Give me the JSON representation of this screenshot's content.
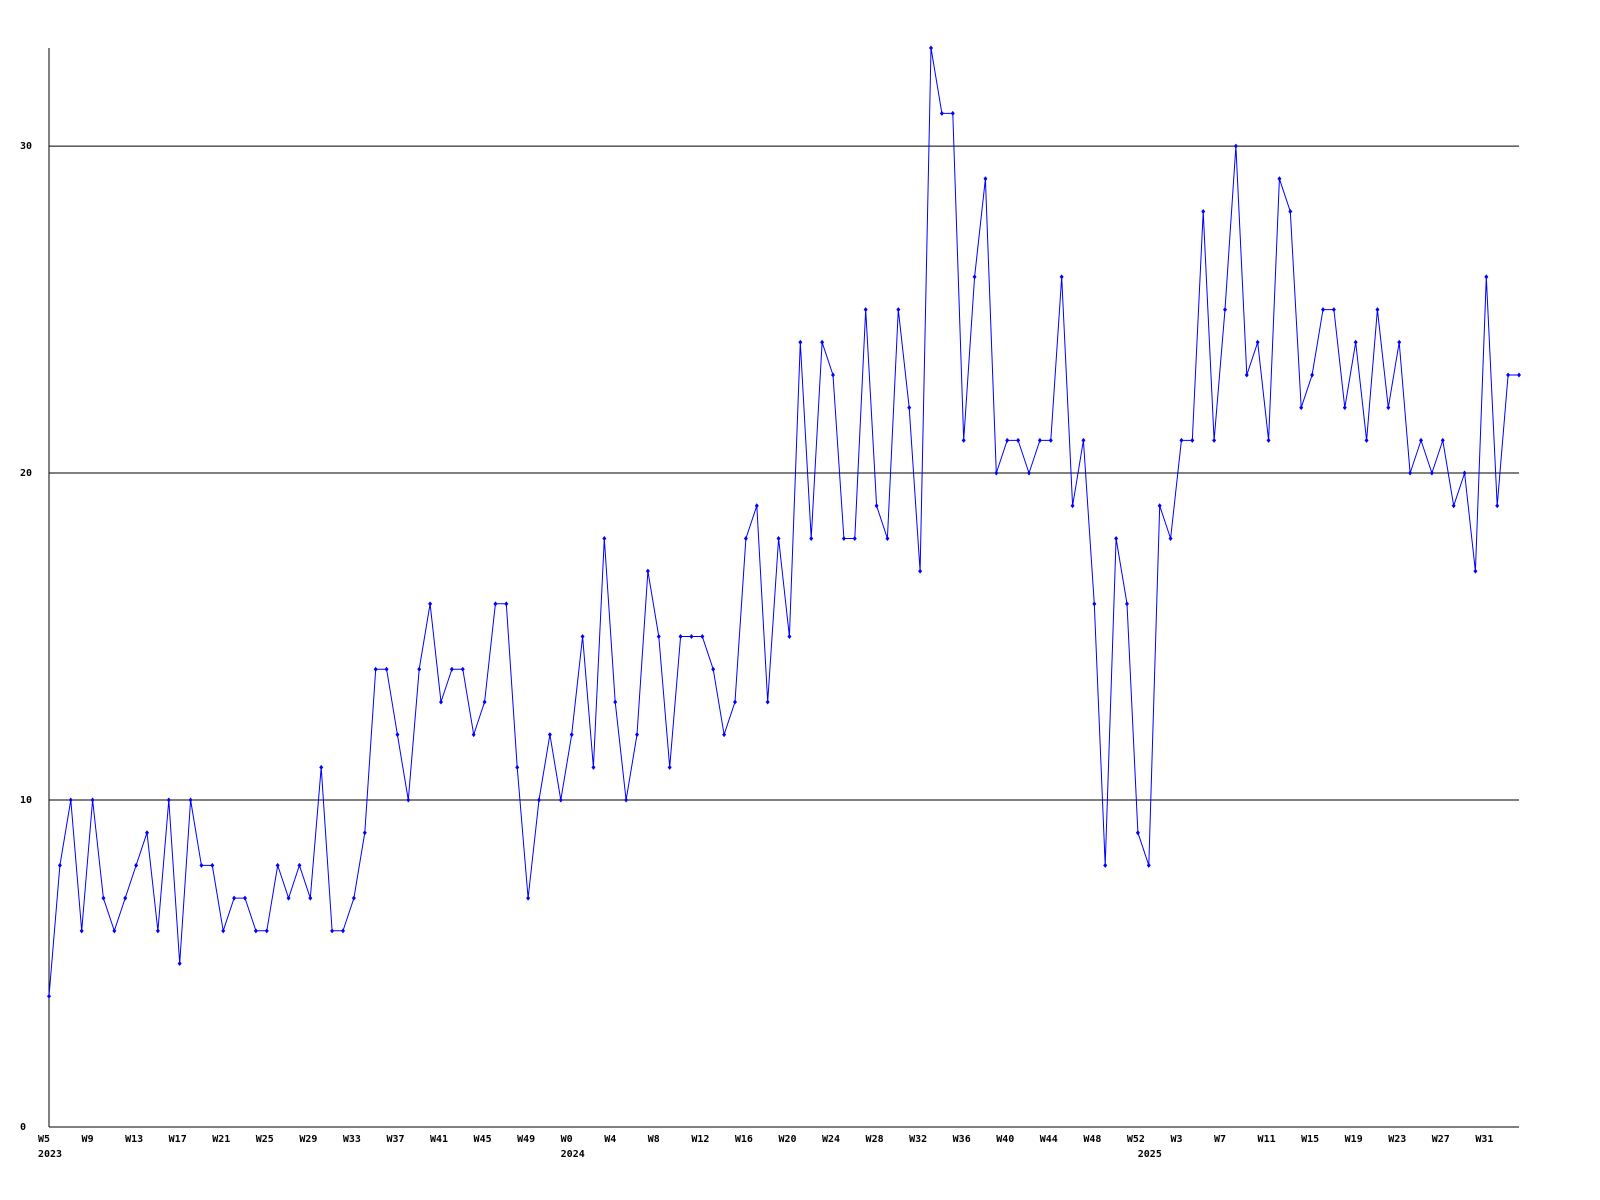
{
  "chart_data": {
    "type": "line",
    "categories": [
      "W5",
      null,
      null,
      null,
      "W9",
      null,
      null,
      null,
      "W13",
      null,
      null,
      null,
      "W17",
      null,
      null,
      null,
      "W21",
      null,
      null,
      null,
      "W25",
      null,
      null,
      null,
      "W29",
      null,
      null,
      null,
      "W33",
      null,
      null,
      null,
      "W37",
      null,
      null,
      null,
      "W41",
      null,
      null,
      null,
      "W45",
      null,
      null,
      null,
      "W49",
      null,
      null,
      null,
      "W0",
      null,
      null,
      null,
      "W4",
      null,
      null,
      null,
      "W8",
      null,
      null,
      null,
      "W12",
      null,
      null,
      null,
      "W16",
      null,
      null,
      null,
      "W20",
      null,
      null,
      null,
      "W24",
      null,
      null,
      null,
      "W28",
      null,
      null,
      null,
      "W32",
      null,
      null,
      null,
      "W36",
      null,
      null,
      null,
      "W40",
      null,
      null,
      null,
      "W44",
      null,
      null,
      null,
      "W48",
      null,
      null,
      null,
      "W52",
      null,
      null,
      null,
      "W3",
      null,
      null,
      null,
      "W7",
      null,
      null,
      null,
      "W11",
      null,
      null,
      null,
      "W15",
      null,
      null,
      null,
      "W19",
      null,
      null,
      null,
      "W23",
      null,
      null,
      null,
      "W27",
      null,
      null,
      null,
      "W31",
      null,
      null,
      null
    ],
    "year_labels": [
      "2023",
      null,
      null,
      null,
      null,
      null,
      null,
      null,
      null,
      null,
      null,
      null,
      null,
      null,
      null,
      null,
      null,
      null,
      null,
      null,
      null,
      null,
      null,
      null,
      null,
      null,
      null,
      null,
      null,
      null,
      null,
      null,
      null,
      null,
      null,
      null,
      null,
      null,
      null,
      null,
      null,
      null,
      null,
      null,
      null,
      null,
      null,
      null,
      "2024",
      null,
      null,
      null,
      null,
      null,
      null,
      null,
      null,
      null,
      null,
      null,
      null,
      null,
      null,
      null,
      null,
      null,
      null,
      null,
      null,
      null,
      null,
      null,
      null,
      null,
      null,
      null,
      null,
      null,
      null,
      null,
      null,
      null,
      null,
      null,
      null,
      null,
      null,
      null,
      null,
      null,
      null,
      null,
      null,
      null,
      null,
      null,
      null,
      null,
      null,
      null,
      null,
      "2025",
      null,
      null,
      null,
      null,
      null,
      null,
      null,
      null,
      null,
      null,
      null,
      null,
      null,
      null,
      null,
      null,
      null,
      null,
      null,
      null,
      null,
      null,
      null,
      null,
      null,
      null,
      null,
      null,
      null,
      null,
      null,
      null,
      null,
      null
    ],
    "series": [
      {
        "color": "#0000ff",
        "values": [
          4,
          8,
          10,
          6,
          10,
          7,
          6,
          7,
          8,
          9,
          6,
          10,
          5,
          10,
          8,
          8,
          6,
          7,
          7,
          6,
          6,
          8,
          7,
          8,
          7,
          11,
          6,
          6,
          7,
          9,
          14,
          14,
          12,
          10,
          14,
          16,
          13,
          14,
          14,
          12,
          13,
          16,
          16,
          11,
          7,
          10,
          12,
          10,
          12,
          15,
          11,
          18,
          13,
          10,
          12,
          17,
          15,
          11,
          15,
          15,
          15,
          14,
          12,
          13,
          18,
          19,
          13,
          18,
          15,
          24,
          18,
          24,
          23,
          18,
          18,
          25,
          19,
          18,
          25,
          22,
          17,
          33,
          31,
          31,
          21,
          26,
          29,
          20,
          21,
          21,
          20,
          21,
          21,
          26,
          19,
          21,
          16,
          8,
          18,
          16,
          9,
          8,
          19,
          18,
          21,
          21,
          28,
          21,
          25,
          30,
          23,
          24,
          21,
          29,
          28,
          22,
          23,
          25,
          25,
          22,
          24,
          21,
          25,
          22,
          24,
          20,
          21,
          20,
          21,
          19,
          20,
          17,
          26,
          19,
          23,
          23
        ]
      }
    ],
    "ylim": [
      0,
      33
    ],
    "yticks": [
      0,
      10,
      20,
      30
    ],
    "grid": true
  }
}
